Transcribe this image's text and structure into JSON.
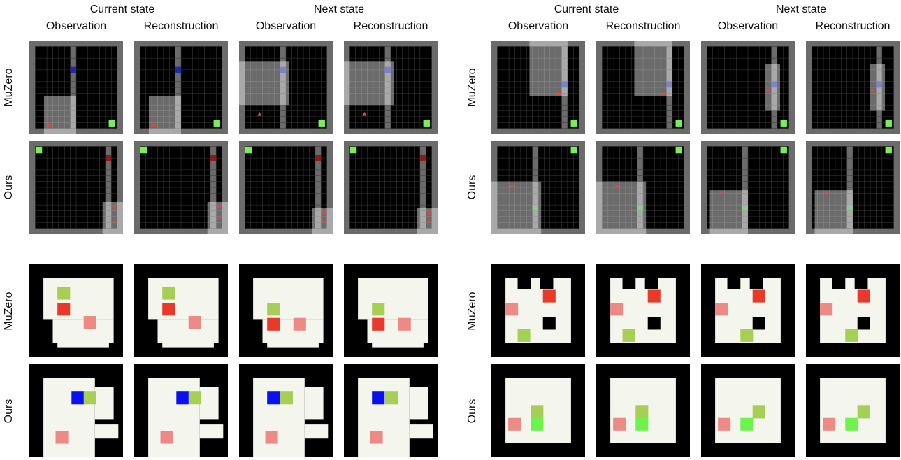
{
  "headers": {
    "current_state": "Current state",
    "next_state": "Next state",
    "observation": "Observation",
    "reconstruction": "Reconstruction"
  },
  "row_labels": {
    "muzero": "MuZero",
    "ours": "Ours"
  },
  "colors": {
    "wall_gray": "#6b6b6b",
    "floor_black": "#000000",
    "grid_line": "#3a3a3a",
    "agent_red": "#e8443a",
    "goal_green": "#77f053",
    "key_blue": "#1c2aa8",
    "door_red": "#8a1c1c",
    "sokoban_floor": "#f4f6ee",
    "sokoban_wall": "#000000",
    "box_red": "#e8392b",
    "target_pink": "#ee8a86",
    "box_green": "#a8cf55",
    "player_blue": "#0a10ee",
    "player_green": "#6ef34c"
  }
}
